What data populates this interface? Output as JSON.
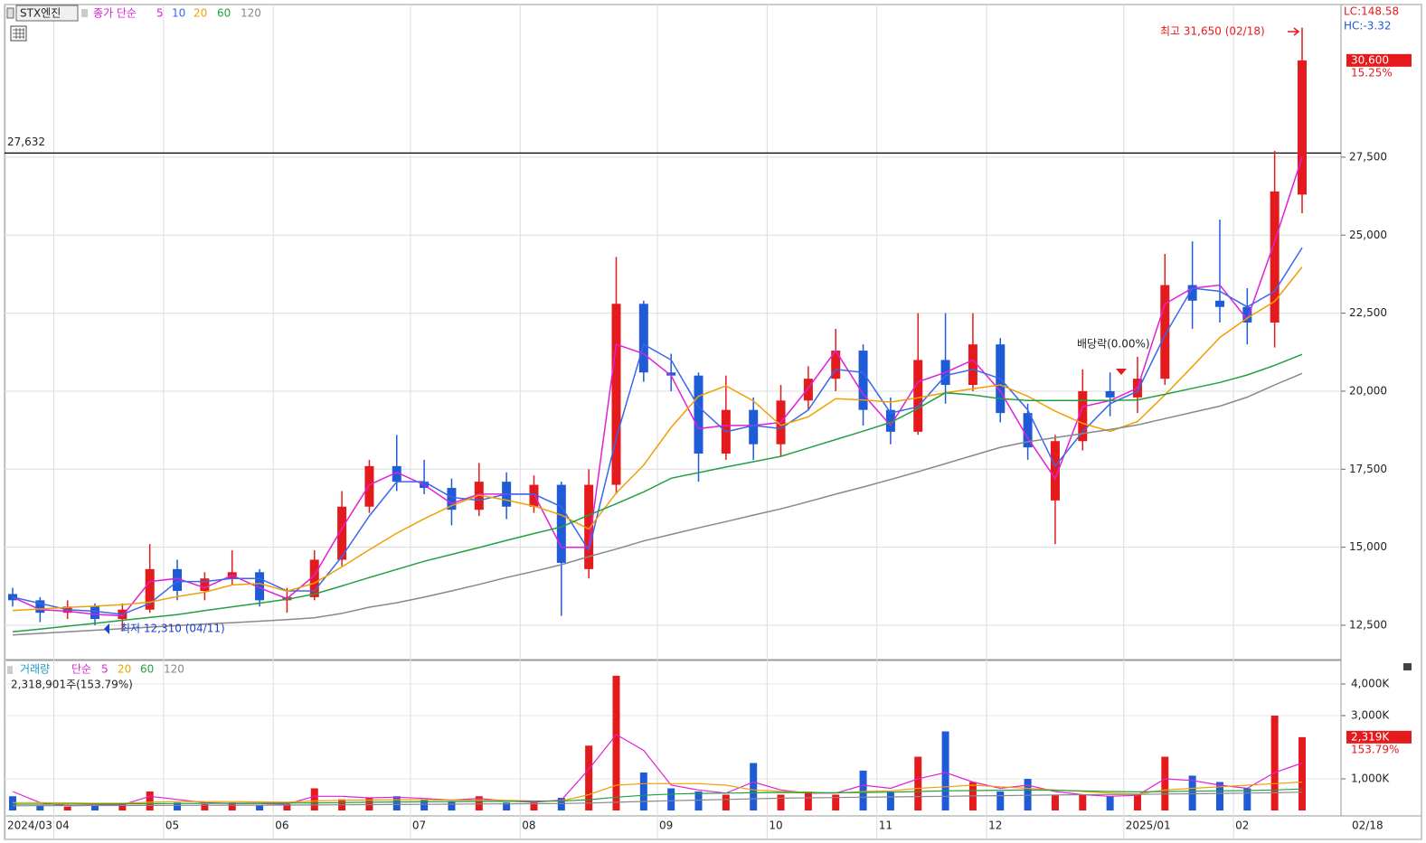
{
  "chart_data": [
    {
      "type": "candlestick",
      "title": "STX엔진",
      "legend_label": "종가 단순",
      "categories": [
        "2024/03",
        null,
        "04",
        null,
        null,
        null,
        "05",
        null,
        null,
        null,
        "06",
        null,
        null,
        null,
        null,
        "07",
        null,
        null,
        null,
        "08",
        null,
        null,
        null,
        null,
        "09",
        null,
        null,
        null,
        "10",
        null,
        null,
        null,
        "11",
        null,
        null,
        null,
        "12",
        null,
        null,
        null,
        null,
        "2025/01",
        null,
        null,
        null,
        "02",
        null,
        null
      ],
      "end_label": "02/18",
      "open": [
        13500,
        13300,
        12900,
        13100,
        12700,
        13000,
        14300,
        13600,
        14000,
        14200,
        13300,
        13400,
        14600,
        16300,
        17600,
        17100,
        16900,
        16200,
        17100,
        16300,
        17000,
        14300,
        17000,
        22800,
        20600,
        20500,
        18000,
        19400,
        18300,
        19700,
        20400,
        21300,
        19400,
        18700,
        21000,
        20200,
        21500,
        19300,
        16500,
        18400,
        20000,
        19800,
        20400,
        23400,
        22900,
        22700,
        22200,
        26300
      ],
      "high": [
        13700,
        13400,
        13300,
        13200,
        13200,
        15100,
        14600,
        14200,
        14900,
        14300,
        13700,
        14900,
        16800,
        17800,
        18600,
        17800,
        17200,
        17700,
        17400,
        17300,
        17100,
        17500,
        24300,
        22900,
        21200,
        20600,
        20500,
        19800,
        20200,
        20800,
        22000,
        21500,
        19800,
        22500,
        22500,
        22500,
        21700,
        19600,
        18600,
        20700,
        20600,
        21100,
        24400,
        24800,
        25500,
        23300,
        27700,
        31650
      ],
      "low": [
        13100,
        12600,
        12700,
        12500,
        12310,
        12900,
        13300,
        13300,
        13800,
        13100,
        12900,
        13300,
        14400,
        16100,
        16800,
        16700,
        15700,
        16000,
        15900,
        16100,
        12800,
        14000,
        16700,
        20300,
        20000,
        17100,
        17800,
        17800,
        17900,
        19400,
        20000,
        18900,
        18300,
        18600,
        19600,
        20000,
        19000,
        17800,
        15100,
        18100,
        19200,
        19300,
        20200,
        22000,
        22200,
        21500,
        21400,
        25700
      ],
      "close": [
        13300,
        12900,
        13100,
        12700,
        13000,
        14300,
        13600,
        14000,
        14200,
        13300,
        13400,
        14600,
        16300,
        17600,
        17100,
        16900,
        16200,
        17100,
        16300,
        17000,
        14500,
        17000,
        22800,
        20600,
        20500,
        18000,
        19400,
        18300,
        19700,
        20400,
        21300,
        19400,
        18700,
        21000,
        20200,
        21500,
        19300,
        18200,
        18400,
        20000,
        19800,
        20400,
        23400,
        22900,
        22700,
        22200,
        26400,
        30600
      ],
      "up_color": "#e41a1c",
      "down_color": "#1f5bd6",
      "series": [
        {
          "name": "5",
          "color": "#e020d8",
          "values": [
            13400,
            13000,
            12950,
            12850,
            12800,
            13900,
            14000,
            13700,
            14100,
            13700,
            13350,
            14100,
            15600,
            17000,
            17400,
            17000,
            16400,
            16700,
            16700,
            16700,
            15000,
            15000,
            21500,
            21200,
            20500,
            18800,
            18900,
            18900,
            19000,
            20100,
            21300,
            19900,
            18900,
            20300,
            20600,
            21000,
            20000,
            18500,
            17200,
            19500,
            19700,
            20100,
            22800,
            23300,
            23400,
            22300,
            24800,
            27500
          ]
        },
        {
          "name": "10",
          "color": "#3a66ee",
          "values": [
            13400,
            13200,
            13000,
            12950,
            12850,
            13200,
            13900,
            13900,
            14000,
            14000,
            13600,
            13600,
            14700,
            16000,
            17100,
            17100,
            16600,
            16500,
            16700,
            16700,
            16300,
            14900,
            18500,
            21500,
            21000,
            19500,
            18700,
            18900,
            18800,
            19400,
            20700,
            20600,
            19300,
            19500,
            20500,
            20700,
            20400,
            19400,
            17600,
            18700,
            19600,
            20000,
            21800,
            23300,
            23200,
            22700,
            23200,
            24600
          ]
        },
        {
          "name": "20",
          "color": "#f0a000",
          "values": [
            12970,
            13020,
            13070,
            13110,
            13160,
            13240,
            13420,
            13560,
            13790,
            13840,
            13590,
            13850,
            14370,
            14920,
            15450,
            15910,
            16330,
            16670,
            16510,
            16320,
            16030,
            15580,
            16740,
            17630,
            18840,
            19840,
            20170,
            19690,
            18900,
            19180,
            19760,
            19720,
            19650,
            19790,
            19950,
            20080,
            20200,
            19840,
            19360,
            18970,
            18710,
            19030,
            19880,
            20790,
            21720,
            22340,
            22880,
            23980
          ]
        },
        {
          "name": "60",
          "color": "#22a040",
          "values": [
            12290,
            12380,
            12470,
            12560,
            12660,
            12750,
            12840,
            12970,
            13090,
            13210,
            13330,
            13500,
            13760,
            14030,
            14290,
            14550,
            14770,
            14990,
            15220,
            15440,
            15650,
            16030,
            16390,
            16770,
            17210,
            17390,
            17570,
            17740,
            17910,
            18180,
            18450,
            18720,
            19000,
            19450,
            19950,
            19880,
            19760,
            19700,
            19700,
            19700,
            19700,
            19720,
            19900,
            20090,
            20280,
            20520,
            20830,
            21180
          ]
        },
        {
          "name": "120",
          "color": "#888888",
          "values": [
            12190,
            12240,
            12290,
            12340,
            12390,
            12440,
            12490,
            12540,
            12580,
            12630,
            12680,
            12740,
            12880,
            13080,
            13220,
            13400,
            13600,
            13810,
            14030,
            14230,
            14440,
            14700,
            14940,
            15200,
            15410,
            15620,
            15820,
            16030,
            16230,
            16460,
            16700,
            16930,
            17170,
            17420,
            17680,
            17940,
            18200,
            18380,
            18510,
            18640,
            18770,
            18920,
            19120,
            19320,
            19520,
            19810,
            20200,
            20570
          ]
        }
      ],
      "ylim": [
        11400,
        32390
      ],
      "yticks": [
        {
          "value": 12500,
          "label": "12,500"
        },
        {
          "value": 15000,
          "label": "15,000"
        },
        {
          "value": 17500,
          "label": "17,500"
        },
        {
          "value": 20000,
          "label": "20,000"
        },
        {
          "value": 22500,
          "label": "22,500"
        },
        {
          "value": 25000,
          "label": "25,000"
        },
        {
          "value": 27500,
          "label": "27,500"
        }
      ],
      "grid": true,
      "reference_line": {
        "value": 27632,
        "label": "27,632"
      },
      "annotations": {
        "high": "최고 31,650 (02/18)",
        "low": "최저 12,310 (04/11)",
        "dividend": "배당락(0.00%)"
      },
      "indicators": {
        "lc": "LC:148.58",
        "hc": "HC:-3.32"
      },
      "last_price": {
        "value": 30600,
        "label": "30,600",
        "change": "15.25%"
      }
    },
    {
      "type": "bar",
      "title": "거래량",
      "legend_label": "단순",
      "summary": "2,318,901주(153.79%)",
      "values": [
        450,
        150,
        120,
        180,
        200,
        600,
        250,
        200,
        250,
        180,
        200,
        700,
        350,
        400,
        450,
        350,
        300,
        450,
        250,
        250,
        400,
        2050,
        4260,
        1200,
        700,
        600,
        500,
        1500,
        500,
        600,
        500,
        1260,
        600,
        1700,
        2500,
        900,
        600,
        1000,
        500,
        500,
        450,
        500,
        1700,
        1100,
        900,
        700,
        3000,
        2319
      ],
      "series": [
        {
          "name": "5",
          "color": "#e020d8",
          "values": [
            600,
            250,
            150,
            170,
            180,
            450,
            350,
            250,
            220,
            220,
            200,
            450,
            450,
            400,
            420,
            380,
            330,
            380,
            300,
            260,
            330,
            1300,
            2400,
            1900,
            800,
            650,
            550,
            900,
            650,
            550,
            550,
            800,
            700,
            1000,
            1200,
            900,
            700,
            800,
            600,
            500,
            450,
            480,
            1000,
            950,
            800,
            700,
            1200,
            1500
          ]
        },
        {
          "name": "20",
          "color": "#f0a000",
          "values": [
            250,
            250,
            240,
            230,
            230,
            260,
            280,
            280,
            280,
            270,
            260,
            300,
            320,
            330,
            340,
            340,
            330,
            330,
            320,
            300,
            300,
            500,
            800,
            850,
            850,
            850,
            800,
            650,
            600,
            580,
            550,
            600,
            620,
            700,
            750,
            800,
            750,
            700,
            650,
            600,
            550,
            520,
            650,
            700,
            750,
            800,
            850,
            900
          ]
        },
        {
          "name": "60",
          "color": "#22a040",
          "values": [
            200,
            200,
            200,
            205,
            210,
            215,
            220,
            225,
            230,
            230,
            235,
            240,
            250,
            260,
            270,
            275,
            280,
            285,
            290,
            295,
            300,
            340,
            420,
            480,
            520,
            540,
            550,
            560,
            570,
            560,
            560,
            570,
            580,
            600,
            620,
            630,
            640,
            650,
            640,
            620,
            600,
            590,
            600,
            610,
            620,
            630,
            650,
            680
          ]
        },
        {
          "name": "120",
          "color": "#888888",
          "values": [
            150,
            152,
            154,
            156,
            158,
            160,
            162,
            165,
            168,
            170,
            172,
            175,
            180,
            185,
            190,
            195,
            200,
            205,
            210,
            215,
            220,
            235,
            260,
            285,
            310,
            330,
            350,
            370,
            390,
            400,
            410,
            420,
            430,
            440,
            450,
            460,
            470,
            480,
            490,
            500,
            505,
            510,
            520,
            530,
            540,
            550,
            560,
            580
          ]
        }
      ],
      "ylim": [
        0,
        4743
      ],
      "yticks": [
        {
          "value": 1000,
          "label": "1,000K"
        },
        {
          "value": 3000,
          "label": "3,000K"
        },
        {
          "value": 4000,
          "label": "4,000K"
        }
      ],
      "last_volume": {
        "value": 2319,
        "label": "2,319K",
        "change": "153.79%"
      }
    }
  ]
}
